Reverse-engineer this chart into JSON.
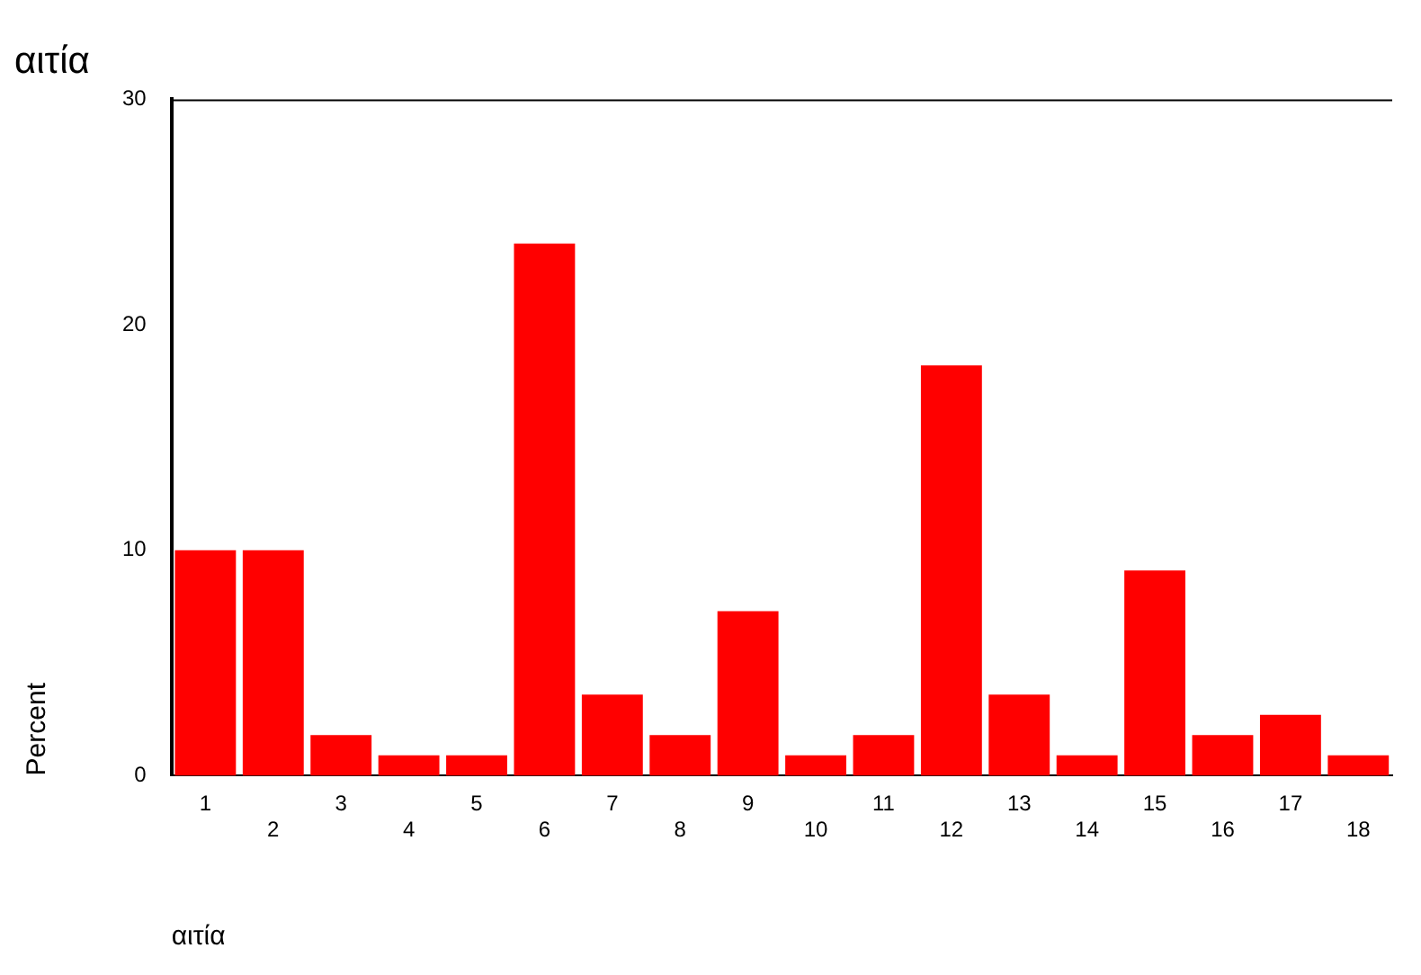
{
  "chart_data": {
    "type": "bar",
    "title": "αιτία",
    "xlabel": "αιτία",
    "ylabel": "Percent",
    "categories": [
      "1",
      "2",
      "3",
      "4",
      "5",
      "6",
      "7",
      "8",
      "9",
      "10",
      "11",
      "12",
      "13",
      "14",
      "15",
      "16",
      "17",
      "18"
    ],
    "values": [
      10,
      10,
      1.8,
      0.9,
      0.9,
      23.6,
      3.6,
      1.8,
      7.3,
      0.9,
      1.8,
      18.2,
      3.6,
      0.9,
      9.1,
      1.8,
      2.7,
      0.9
    ],
    "color": "#ff0000",
    "ylim": [
      0,
      30
    ],
    "yticks": [
      0,
      10,
      20,
      30
    ],
    "grid": false,
    "legend": false
  }
}
